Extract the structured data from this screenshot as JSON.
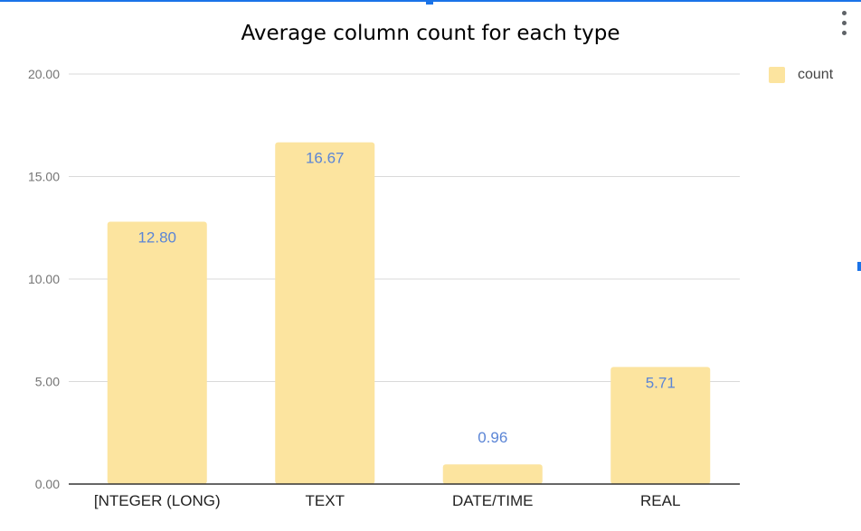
{
  "chart_data": {
    "type": "bar",
    "title": "Average column count for each type",
    "categories": [
      "[NTEGER (LONG)",
      "TEXT",
      "DATE/TIME",
      "REAL"
    ],
    "series": [
      {
        "name": "count",
        "values": [
          12.8,
          16.67,
          0.96,
          5.71
        ]
      }
    ],
    "value_labels": [
      "12.80",
      "16.67",
      "0.96",
      "5.71"
    ],
    "yticks": [
      "0.00",
      "5.00",
      "10.00",
      "15.00",
      "20.00"
    ],
    "ylim": [
      0,
      20
    ],
    "grid": true,
    "legend_position": "top-right",
    "bar_color": "#fce49f",
    "label_color": "#5b85d6"
  }
}
